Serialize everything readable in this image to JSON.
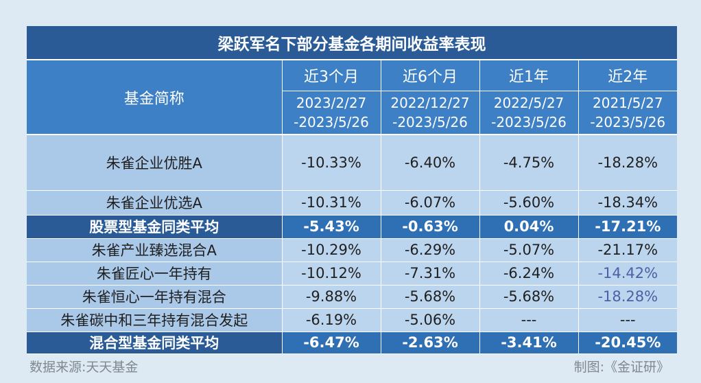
{
  "title": "梁跃军名下部分基金各期间收益率表现",
  "header": {
    "name_label": "基金简称",
    "periods": [
      {
        "label": "近3个月",
        "start": "2023/2/27",
        "end": "-2023/5/26"
      },
      {
        "label": "近6个月",
        "start": "2022/12/27",
        "end": "-2023/5/26"
      },
      {
        "label": "近1年",
        "start": "2022/5/27",
        "end": "-2023/5/26"
      },
      {
        "label": "近2年",
        "start": "2021/5/27",
        "end": "-2023/5/26"
      }
    ]
  },
  "rows": [
    {
      "name": "朱雀企业优胜A",
      "values": [
        "-10.33%",
        "-6.40%",
        "-4.75%",
        "-18.28%"
      ]
    },
    {
      "name": "朱雀企业优选A",
      "values": [
        "-10.31%",
        "-6.07%",
        "-5.60%",
        "-18.34%"
      ]
    },
    {
      "name": "股票型基金同类平均",
      "values": [
        "-5.43%",
        "-0.63%",
        "0.04%",
        "-17.21%"
      ]
    },
    {
      "name": "朱雀产业臻选混合A",
      "values": [
        "-10.29%",
        "-6.29%",
        "-5.07%",
        "-21.17%"
      ]
    },
    {
      "name": "朱雀匠心一年持有",
      "values": [
        "-10.12%",
        "-7.31%",
        "-6.24%",
        "-14.42%"
      ]
    },
    {
      "name": "朱雀恒心一年持有混合",
      "values": [
        "-9.88%",
        "-5.68%",
        "-5.68%",
        "-18.28%"
      ]
    },
    {
      "name": "朱雀碳中和三年持有混合发起",
      "values": [
        "-6.19%",
        "-5.06%",
        "---",
        "---"
      ]
    },
    {
      "name": "混合型基金同类平均",
      "values": [
        "-6.47%",
        "-2.63%",
        "-3.41%",
        "-20.45%"
      ]
    }
  ],
  "colors": {
    "title_bg": "#2a5b96",
    "header_bg": "#3e80c5",
    "data_bg": "#bcd5ee",
    "name_bg": "#aac8e8",
    "average_bg": "#2f6fb3",
    "highlight_text": "#4a62a4",
    "page_bg": "#dde9f3"
  },
  "footer": {
    "source": "数据来源:天天基金",
    "credit": "制图:《金证研》"
  }
}
